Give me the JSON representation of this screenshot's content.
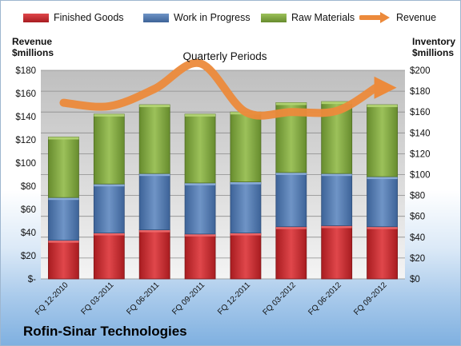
{
  "company": "Rofin-Sinar Technologies",
  "colors": {
    "finished_goods": "#c8262b",
    "work_in_progress": "#4f78ad",
    "raw_materials": "#7fa53e",
    "revenue": "#ec8a3b"
  },
  "chart_data": {
    "type": "bar",
    "stacked": true,
    "title": "Quarterly Periods",
    "ylabel_left": "Revenue $millions",
    "ylabel_right": "Inventory $millions",
    "left_axis_title_lines": [
      "Revenue",
      "$millions"
    ],
    "right_axis_title_lines": [
      "Inventory",
      "$millions"
    ],
    "categories": [
      "FQ 12-2010",
      "FQ 03-2011",
      "FQ 06-2011",
      "FQ 09-2011",
      "FQ 12-2011",
      "FQ 03-2012",
      "FQ 06-2012",
      "FQ 09-2012"
    ],
    "series": [
      {
        "name": "Finished Goods",
        "axis": "inventory",
        "values": [
          37,
          44,
          47,
          43,
          44,
          50,
          51,
          50
        ]
      },
      {
        "name": "Work in Progress",
        "axis": "inventory",
        "values": [
          41,
          47,
          54,
          49,
          49,
          52,
          50,
          48
        ]
      },
      {
        "name": "Raw Materials",
        "axis": "inventory",
        "values": [
          58,
          67,
          66,
          66,
          67,
          67,
          69,
          69
        ]
      },
      {
        "name": "Revenue",
        "type": "line",
        "axis": "revenue",
        "values": [
          152,
          149,
          164,
          186,
          144,
          144,
          145,
          165
        ]
      }
    ],
    "ylim_left": [
      0,
      180
    ],
    "yticks_left": [
      "$-",
      "$20",
      "$40",
      "$60",
      "$80",
      "$100",
      "$120",
      "$140",
      "$160",
      "$180"
    ],
    "ylim_right": [
      0,
      200
    ],
    "yticks_right": [
      "$0",
      "$20",
      "$40",
      "$60",
      "$80",
      "$100",
      "$120",
      "$140",
      "$160",
      "$180",
      "$200"
    ],
    "grid": true,
    "legend_position": "top"
  }
}
